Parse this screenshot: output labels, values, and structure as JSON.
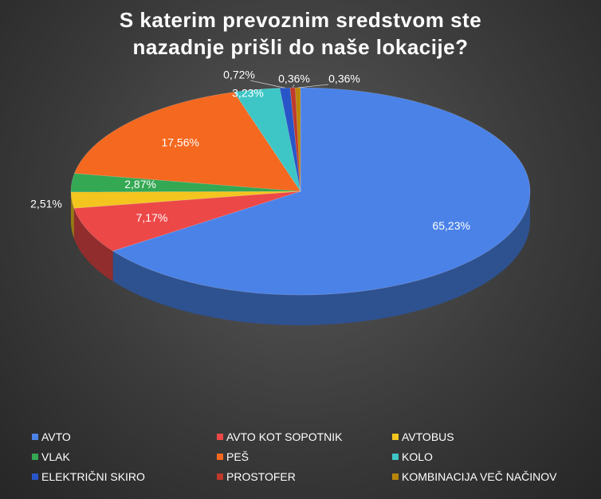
{
  "chart_data": {
    "type": "pie",
    "title": "S katerim prevoznim sredstvom ste\nnazadnje prišli do naše lokacije?",
    "legend_position": "bottom",
    "slices": [
      {
        "name": "AVTO",
        "value": 65.23,
        "label": "65,23%",
        "color": "#4A82E8"
      },
      {
        "name": "AVTO KOT SOPOTNIK",
        "value": 7.17,
        "label": "7,17%",
        "color": "#EC4848"
      },
      {
        "name": "AVTOBUS",
        "value": 2.51,
        "label": "2,51%",
        "color": "#F4C51E"
      },
      {
        "name": "VLAK",
        "value": 2.87,
        "label": "2,87%",
        "color": "#34A853"
      },
      {
        "name": "PEŠ",
        "value": 17.56,
        "label": "17,56%",
        "color": "#F5681F"
      },
      {
        "name": "KOLO",
        "value": 3.23,
        "label": "3,23%",
        "color": "#3EC6C6"
      },
      {
        "name": "ELEKTRIČNI SKIRO",
        "value": 0.72,
        "label": "0,72%",
        "color": "#2855C8"
      },
      {
        "name": "PROSTOFER",
        "value": 0.36,
        "label": "0,36%",
        "color": "#C0392B"
      },
      {
        "name": "KOMBINACIJA VEČ NAČINOV",
        "value": 0.36,
        "label": "0,36%",
        "color": "#B8860B"
      }
    ]
  }
}
